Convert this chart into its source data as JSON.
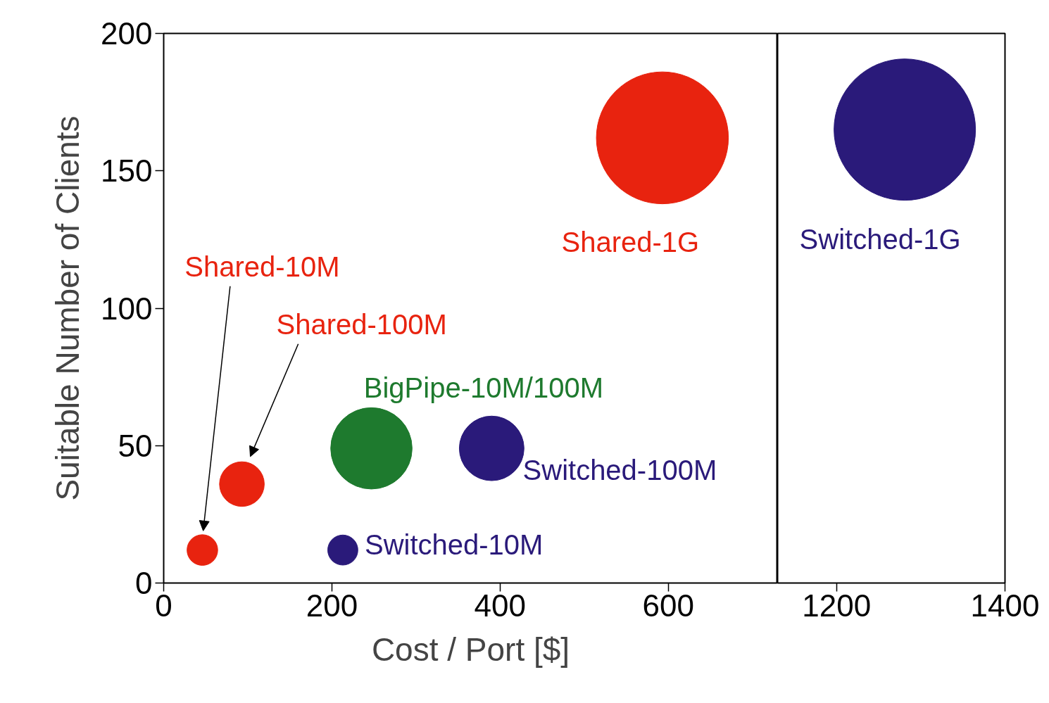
{
  "chart_data": [
    {
      "type": "bubble",
      "xlabel": "Cost / Port [$]",
      "ylabel": "Suitable Number of Clients",
      "xlim": [
        0,
        730
      ],
      "xticks": [
        0,
        200,
        400,
        600
      ],
      "ylim": [
        0,
        200
      ],
      "yticks": [
        0,
        50,
        100,
        150,
        200
      ],
      "grid": false,
      "series": [
        {
          "name": "Shared-10M",
          "color": "#e8230f",
          "x": [
            46
          ],
          "values": [
            12
          ],
          "sizes": [
            0.054
          ]
        },
        {
          "name": "Shared-100M",
          "color": "#e8230f",
          "x": [
            93
          ],
          "values": [
            36
          ],
          "sizes": [
            0.115
          ]
        },
        {
          "name": "BigPipe-10M/100M",
          "color": "#1e7a2e",
          "x": [
            247
          ],
          "values": [
            49
          ],
          "sizes": [
            0.38
          ]
        },
        {
          "name": "Switched-100M",
          "color": "#2a1a7a",
          "x": [
            390
          ],
          "values": [
            49
          ],
          "sizes": [
            0.24
          ]
        },
        {
          "name": "Switched-10M",
          "color": "#2a1a7a",
          "x": [
            213
          ],
          "values": [
            12
          ],
          "sizes": [
            0.052
          ]
        },
        {
          "name": "Shared-1G",
          "color": "#e8230f",
          "x": [
            593
          ],
          "values": [
            162
          ],
          "sizes": [
            1
          ]
        }
      ]
    },
    {
      "type": "bubble",
      "xlim": [
        1130,
        1400
      ],
      "xticks": [
        1200,
        1400
      ],
      "ylim": [
        0,
        200
      ],
      "tick_labels": "x",
      "grid": false,
      "series": [
        {
          "name": "Switched-1G",
          "color": "#2a1a7a",
          "x": [
            1281
          ],
          "values": [
            165
          ],
          "sizes": [
            1
          ]
        }
      ]
    }
  ]
}
